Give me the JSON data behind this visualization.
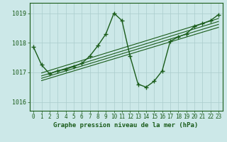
{
  "title": "Graphe pression niveau de la mer (hPa)",
  "bg_color": "#cce8e8",
  "plot_bg_color": "#cce8e8",
  "grid_color": "#aacccc",
  "line_color": "#1a5c1a",
  "xlim": [
    -0.5,
    23.5
  ],
  "ylim": [
    1015.7,
    1019.35
  ],
  "yticks": [
    1016,
    1017,
    1018,
    1019
  ],
  "xticks": [
    0,
    1,
    2,
    3,
    4,
    5,
    6,
    7,
    8,
    9,
    10,
    11,
    12,
    13,
    14,
    15,
    16,
    17,
    18,
    19,
    20,
    21,
    22,
    23
  ],
  "main_data": [
    1017.85,
    1017.25,
    1016.95,
    1017.05,
    1017.1,
    1017.2,
    1017.3,
    1017.55,
    1017.9,
    1018.3,
    1019.0,
    1018.75,
    1017.55,
    1016.6,
    1016.5,
    1016.7,
    1017.05,
    1018.05,
    1018.2,
    1018.3,
    1018.55,
    1018.65,
    1018.75,
    1018.95
  ],
  "trend_lines": [
    {
      "x": [
        1,
        23
      ],
      "y": [
        1016.98,
        1018.82
      ]
    },
    {
      "x": [
        1,
        23
      ],
      "y": [
        1016.88,
        1018.72
      ]
    },
    {
      "x": [
        1,
        23
      ],
      "y": [
        1016.8,
        1018.62
      ]
    },
    {
      "x": [
        1,
        23
      ],
      "y": [
        1016.72,
        1018.52
      ]
    }
  ],
  "marker": "+",
  "markersize": 5,
  "linewidth": 1.0,
  "trend_linewidth": 0.8,
  "xlabel_fontsize": 6.5,
  "tick_fontsize": 5.5
}
